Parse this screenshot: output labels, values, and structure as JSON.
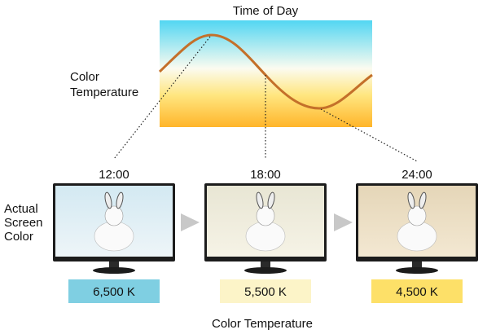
{
  "graph": {
    "title": "Time of Day",
    "y_label": [
      "Color",
      "Temperature"
    ]
  },
  "row_label": [
    "Actual",
    "Screen",
    "Color"
  ],
  "monitors": [
    {
      "time": "12:00",
      "temperature": "6,500 K"
    },
    {
      "time": "18:00",
      "temperature": "5,500 K"
    },
    {
      "time": "24:00",
      "temperature": "4,500 K"
    }
  ],
  "footer": "Color Temperature"
}
